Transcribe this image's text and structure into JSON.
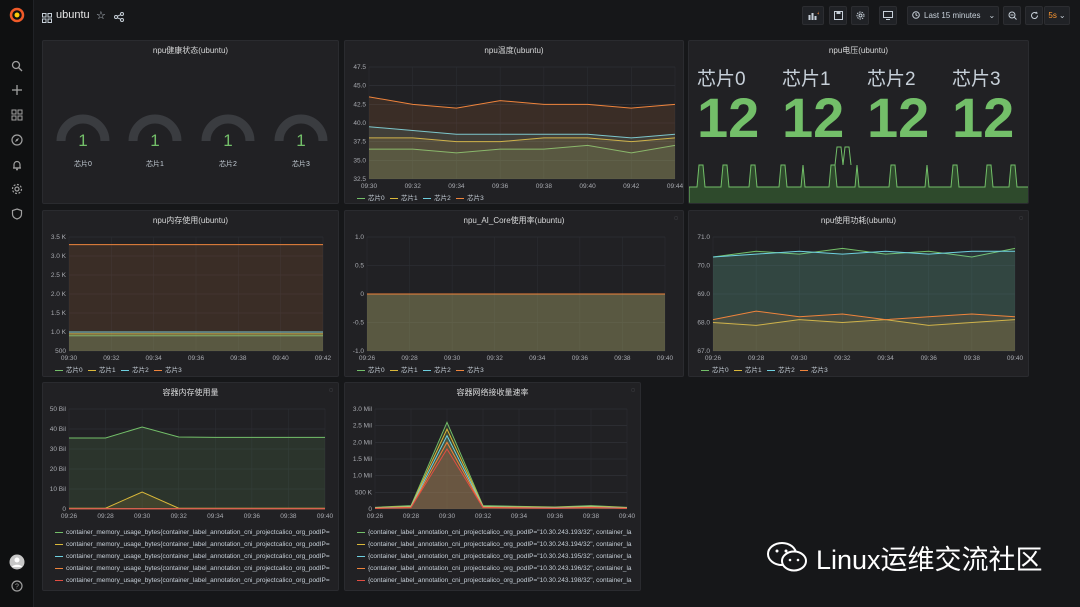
{
  "topbar": {
    "title": "ubuntu",
    "time_range": "Last 15 minutes",
    "refresh": "5s"
  },
  "colors": {
    "green": "#73bf69",
    "yellow": "#dab83a",
    "blue": "#6ed0e0",
    "orange": "#ef843c",
    "red": "#e24d42"
  },
  "panels": {
    "health": {
      "title": "npu健康状态(ubuntu)",
      "gauges": [
        {
          "label": "芯片0",
          "value": "1"
        },
        {
          "label": "芯片1",
          "value": "1"
        },
        {
          "label": "芯片2",
          "value": "1"
        },
        {
          "label": "芯片3",
          "value": "1"
        }
      ]
    },
    "temp": {
      "title": "npu温度(ubuntu)",
      "legend": [
        "芯片0",
        "芯片1",
        "芯片2",
        "芯片3"
      ]
    },
    "voltage": {
      "title": "npu电压(ubuntu)",
      "chips": [
        {
          "label": "芯片0",
          "value": "12"
        },
        {
          "label": "芯片1",
          "value": "12"
        },
        {
          "label": "芯片2",
          "value": "12"
        },
        {
          "label": "芯片3",
          "value": "12"
        }
      ]
    },
    "mem": {
      "title": "npu内存使用(ubuntu)",
      "legend": [
        "芯片0",
        "芯片1",
        "芯片2",
        "芯片3"
      ]
    },
    "aicore": {
      "title": "npu_AI_Core使用率(ubuntu)",
      "legend": [
        "芯片0",
        "芯片1",
        "芯片2",
        "芯片3"
      ]
    },
    "power": {
      "title": "npu使用功耗(ubuntu)",
      "legend": [
        "芯片0",
        "芯片1",
        "芯片2",
        "芯片3"
      ]
    },
    "cmem": {
      "title": "容器内存使用量",
      "legend": [
        "container_memory_usage_bytes{container_label_annotation_cni_projectcalico_org_podIP=",
        "container_memory_usage_bytes{container_label_annotation_cni_projectcalico_org_podIP=",
        "container_memory_usage_bytes{container_label_annotation_cni_projectcalico_org_podIP=",
        "container_memory_usage_bytes{container_label_annotation_cni_projectcalico_org_podIP=",
        "container_memory_usage_bytes{container_label_annotation_cni_projectcalico_org_podIP="
      ]
    },
    "cnet": {
      "title": "容器网络接收量速率",
      "legend": [
        "{container_label_annotation_cni_projectcalico_org_podIP=\"10.30.243.193/32\", container_la",
        "{container_label_annotation_cni_projectcalico_org_podIP=\"10.30.243.194/32\", container_la",
        "{container_label_annotation_cni_projectcalico_org_podIP=\"10.30.243.195/32\", container_la",
        "{container_label_annotation_cni_projectcalico_org_podIP=\"10.30.243.196/32\", container_la",
        "{container_label_annotation_cni_projectcalico_org_podIP=\"10.30.243.198/32\", container_la"
      ]
    }
  },
  "chart_data": [
    {
      "type": "line",
      "title": "npu温度(ubuntu)",
      "x": [
        "09:30",
        "09:32",
        "09:34",
        "09:36",
        "09:38",
        "09:40",
        "09:42",
        "09:44"
      ],
      "ylim": [
        32.5,
        47.5
      ],
      "yticks": [
        "47.5",
        "45.0",
        "42.5",
        "40.0",
        "37.5",
        "35.0",
        "32.5"
      ],
      "series": [
        {
          "name": "芯片0",
          "values": [
            36.5,
            36.5,
            36,
            36.5,
            36.5,
            37,
            36,
            37
          ]
        },
        {
          "name": "芯片1",
          "values": [
            38,
            38,
            37.5,
            37.5,
            38,
            38,
            37.5,
            38
          ]
        },
        {
          "name": "芯片2",
          "values": [
            39.5,
            39,
            38.5,
            38.5,
            38.5,
            38.5,
            38,
            38.5
          ]
        },
        {
          "name": "芯片3",
          "values": [
            43.5,
            42.5,
            42,
            43,
            42.5,
            42.5,
            42,
            42.5
          ]
        }
      ]
    },
    {
      "type": "line",
      "title": "npu内存使用(ubuntu)",
      "x": [
        "09:30",
        "09:32",
        "09:34",
        "09:36",
        "09:38",
        "09:40",
        "09:42"
      ],
      "ylim": [
        500,
        3500
      ],
      "yticks": [
        "3.5 K",
        "3.0 K",
        "2.5 K",
        "2.0 K",
        "1.5 K",
        "1.0 K",
        "500"
      ],
      "series": [
        {
          "name": "芯片0",
          "values": [
            900,
            900,
            900,
            900,
            900,
            900,
            900
          ]
        },
        {
          "name": "芯片1",
          "values": [
            950,
            950,
            950,
            950,
            950,
            950,
            950
          ]
        },
        {
          "name": "芯片2",
          "values": [
            1000,
            1000,
            1000,
            1000,
            1000,
            1000,
            1000
          ]
        },
        {
          "name": "芯片3",
          "values": [
            3300,
            3300,
            3300,
            3300,
            3300,
            3300,
            3300
          ]
        }
      ]
    },
    {
      "type": "line",
      "title": "npu_AI_Core使用率(ubuntu)",
      "x": [
        "09:26",
        "09:28",
        "09:30",
        "09:32",
        "09:34",
        "09:36",
        "09:38",
        "09:40"
      ],
      "ylim": [
        -1.0,
        1.0
      ],
      "yticks": [
        "1.0",
        "0.5",
        "0",
        "-0.5",
        "-1.0"
      ],
      "series": [
        {
          "name": "芯片0",
          "values": [
            0,
            0,
            0,
            0,
            0,
            0,
            0,
            0
          ]
        },
        {
          "name": "芯片1",
          "values": [
            0,
            0,
            0,
            0,
            0,
            0,
            0,
            0
          ]
        },
        {
          "name": "芯片2",
          "values": [
            0,
            0,
            0,
            0,
            0,
            0,
            0,
            0
          ]
        },
        {
          "name": "芯片3",
          "values": [
            0,
            0,
            0,
            0,
            0,
            0,
            0,
            0
          ]
        }
      ]
    },
    {
      "type": "line",
      "title": "npu使用功耗(ubuntu)",
      "x": [
        "09:26",
        "09:28",
        "09:30",
        "09:32",
        "09:34",
        "09:36",
        "09:38",
        "09:40"
      ],
      "ylim": [
        67.0,
        71.0
      ],
      "yticks": [
        "71.0",
        "70.0",
        "69.0",
        "68.0",
        "67.0"
      ],
      "series": [
        {
          "name": "芯片0",
          "values": [
            70.3,
            70.5,
            70.4,
            70.6,
            70.4,
            70.5,
            70.3,
            70.6
          ]
        },
        {
          "name": "芯片1",
          "values": [
            68.0,
            67.9,
            68.1,
            68.0,
            68.1,
            67.9,
            68.0,
            68.1
          ]
        },
        {
          "name": "芯片2",
          "values": [
            70.3,
            70.4,
            70.5,
            70.4,
            70.5,
            70.4,
            70.5,
            70.5
          ]
        },
        {
          "name": "芯片3",
          "values": [
            68.1,
            68.4,
            68.2,
            68.3,
            68.1,
            68.2,
            68.3,
            68.2
          ]
        }
      ]
    },
    {
      "type": "line",
      "title": "容器内存使用量",
      "x": [
        "09:26",
        "09:28",
        "09:30",
        "09:32",
        "09:34",
        "09:36",
        "09:38",
        "09:40"
      ],
      "ylim": [
        0,
        50
      ],
      "yticks": [
        "50 Bil",
        "40 Bil",
        "30 Bil",
        "20 Bil",
        "10 Bil",
        "0"
      ],
      "series": [
        {
          "values": [
            35.5,
            35.5,
            41,
            36,
            35.8,
            35.8,
            35.8,
            35.8
          ]
        },
        {
          "values": [
            0.4,
            0.4,
            8.5,
            0.4,
            0.4,
            0.4,
            0.4,
            0.4
          ]
        },
        {
          "values": [
            0.2,
            0.2,
            0.2,
            0.2,
            0.2,
            0.2,
            0.2,
            0.2
          ]
        },
        {
          "values": [
            0.1,
            0.1,
            0.1,
            0.1,
            0.1,
            0.1,
            0.1,
            0.1
          ]
        },
        {
          "values": [
            0.1,
            0.1,
            0.1,
            0.1,
            0.1,
            0.1,
            0.1,
            0.1
          ]
        }
      ]
    },
    {
      "type": "line",
      "title": "容器网络接收量速率",
      "x": [
        "09:26",
        "09:28",
        "09:30",
        "09:32",
        "09:34",
        "09:36",
        "09:38",
        "09:40"
      ],
      "ylim": [
        0,
        3.0
      ],
      "yticks": [
        "3.0 Mil",
        "2.5 Mil",
        "2.0 Mil",
        "1.5 Mil",
        "1.0 Mil",
        "500 K",
        "0"
      ],
      "series": [
        {
          "values": [
            0.05,
            0.1,
            2.6,
            0.1,
            0.08,
            0.06,
            0.1,
            0.05
          ]
        },
        {
          "values": [
            0.04,
            0.08,
            2.4,
            0.08,
            0.06,
            0.05,
            0.08,
            0.04
          ]
        },
        {
          "values": [
            0.03,
            0.06,
            2.2,
            0.06,
            0.05,
            0.04,
            0.06,
            0.03
          ]
        },
        {
          "values": [
            0.02,
            0.05,
            2.0,
            0.05,
            0.04,
            0.03,
            0.05,
            0.02
          ]
        },
        {
          "values": [
            0.02,
            0.04,
            1.8,
            0.04,
            0.03,
            0.02,
            0.04,
            0.02
          ]
        }
      ]
    }
  ],
  "watermark": "Linux运维交流社区"
}
